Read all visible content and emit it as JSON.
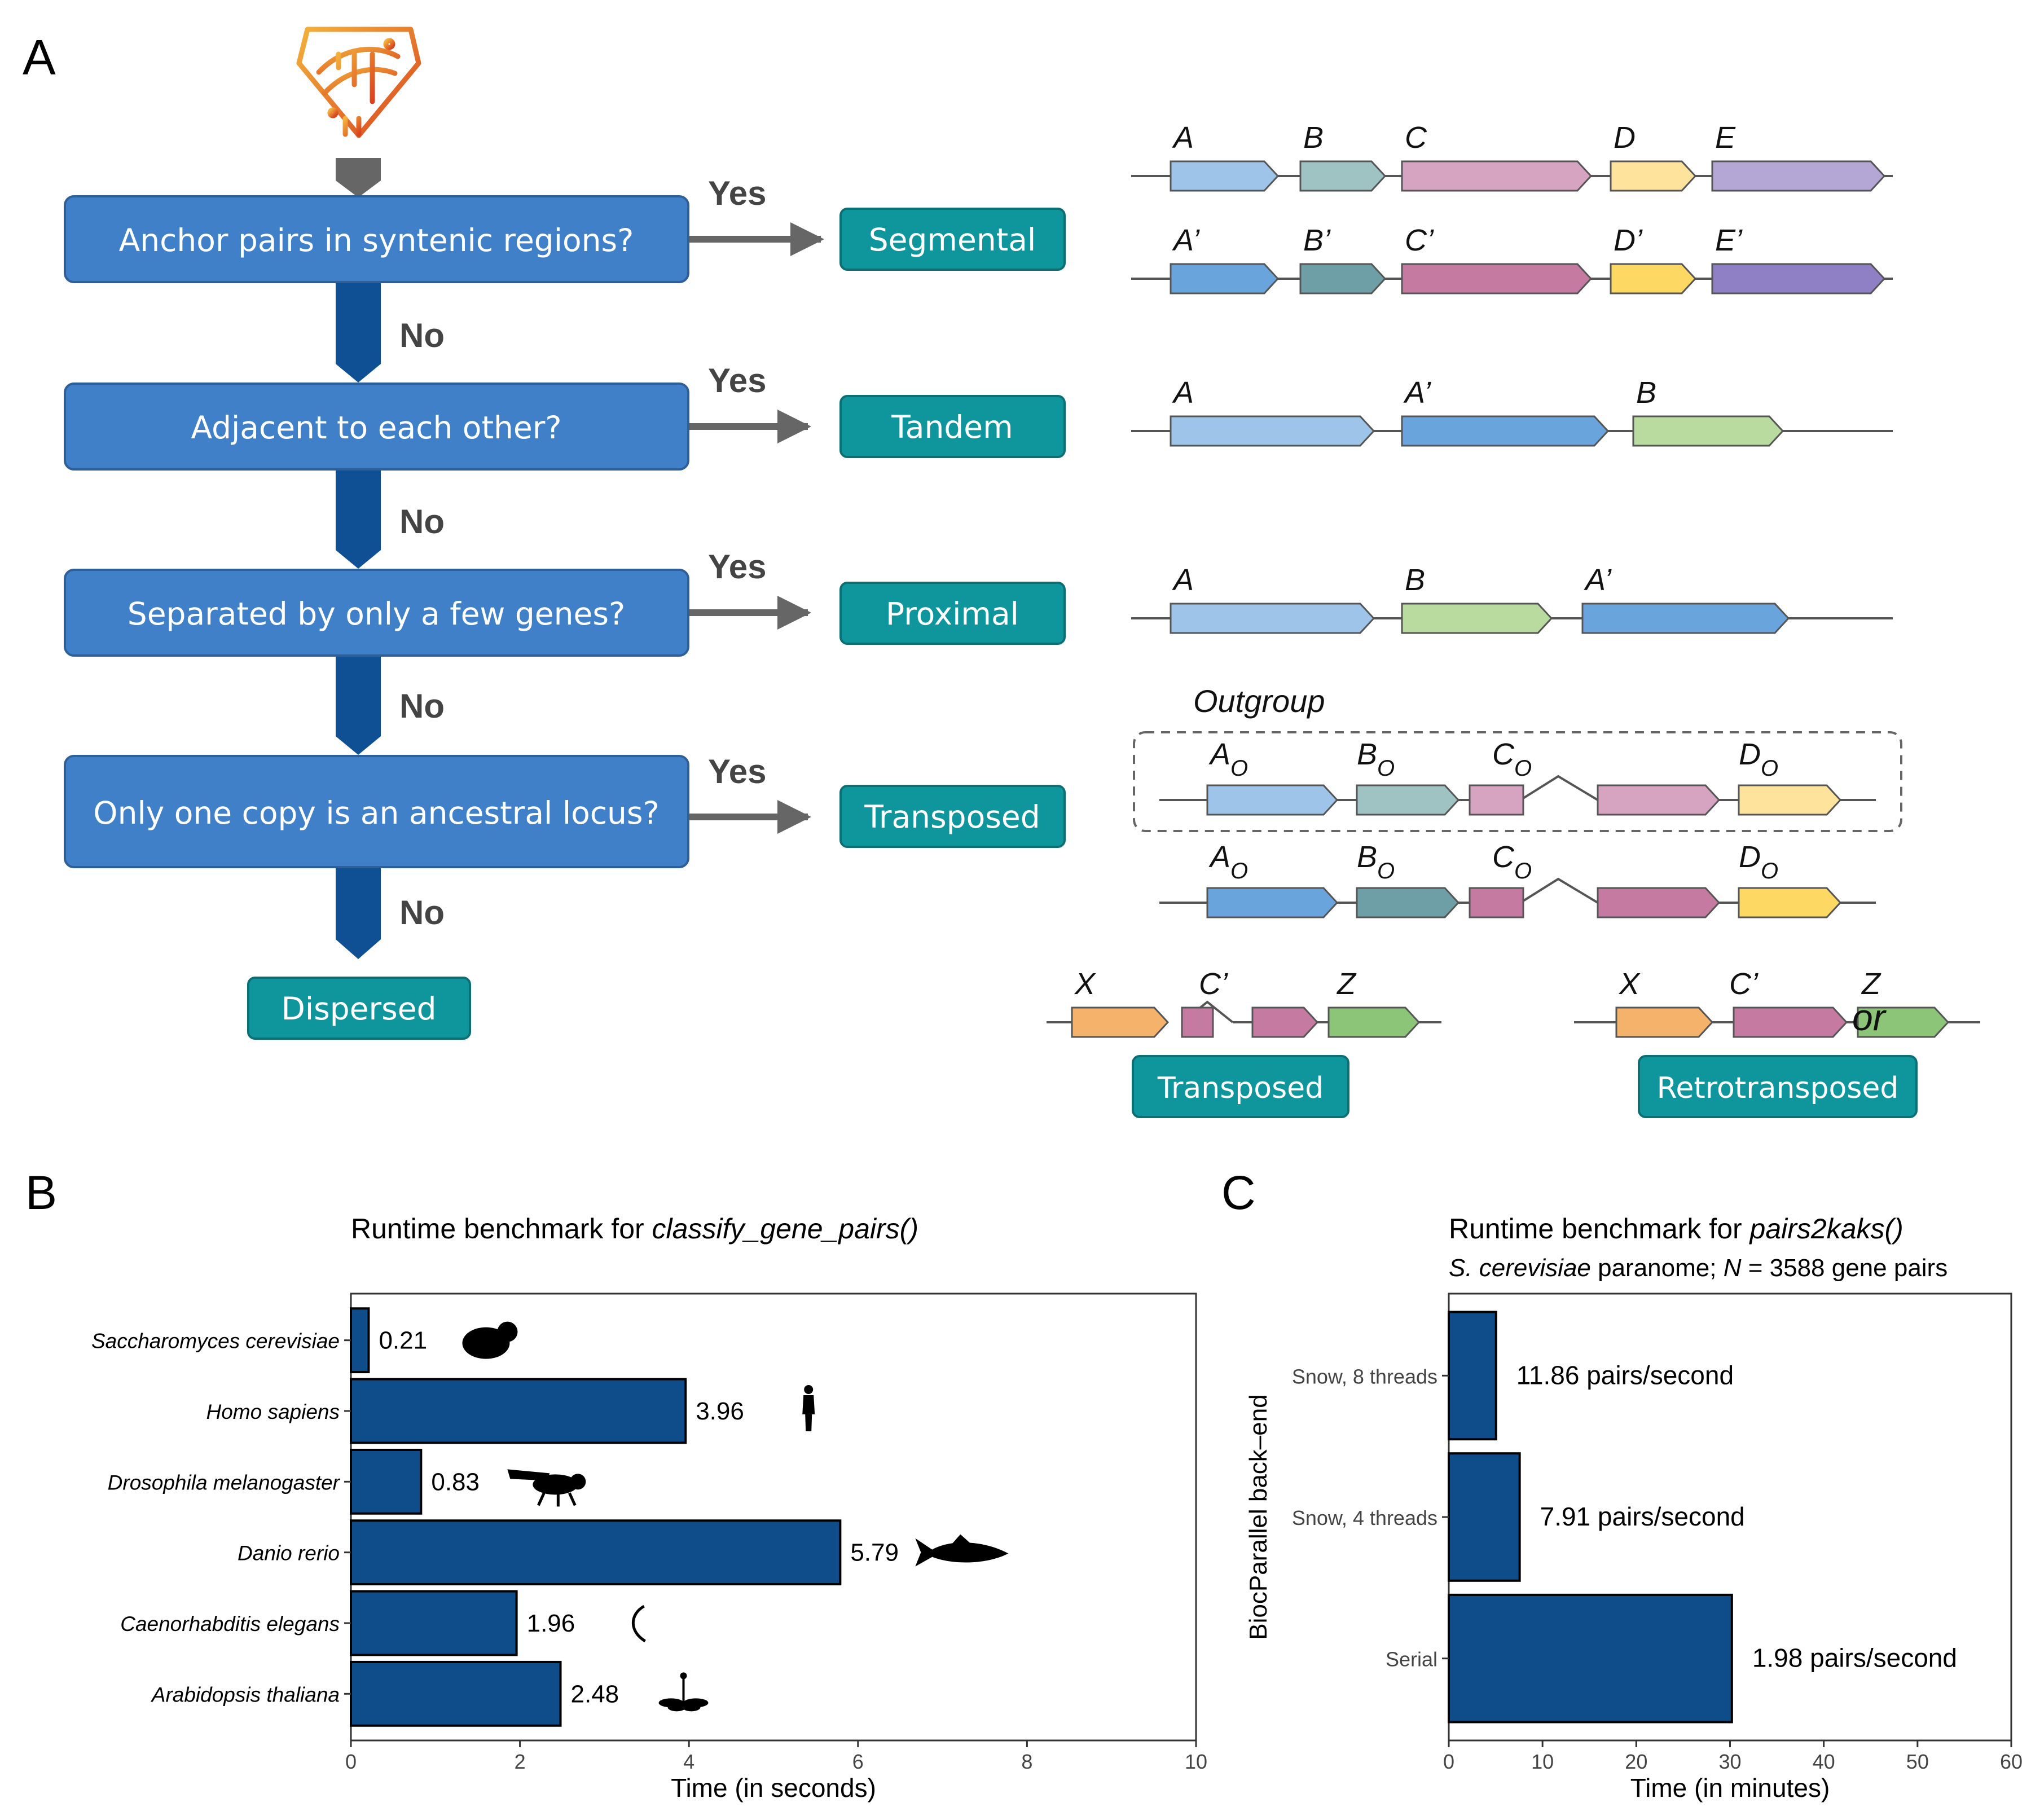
{
  "colors": {
    "question_box": "#3f80c8",
    "question_border": "#2f5f98",
    "category_box": "#0f969c",
    "category_border": "#0c6f74",
    "down_arrow": "#0f4f94",
    "side_arrow": "#666666",
    "bar_fill": "#0f4c8a",
    "gene_A": "#9fc4ea",
    "gene_A2": "#6aa4dc",
    "gene_B": "#9ec3c2",
    "gene_B2": "#6f9fa6",
    "gene_C": "#d6a3c1",
    "gene_C2": "#c57aa2",
    "gene_D": "#fde39b",
    "gene_D2": "#fdd862",
    "gene_E": "#b4a7d6",
    "gene_E2": "#8f7fc4",
    "gene_green": "#b9dba0",
    "gene_X": "#f5b26b",
    "gene_Z": "#8cc577"
  },
  "logo": "genomic-dna-shield-logo",
  "panelA": {
    "label": "A",
    "questions": [
      "Anchor pairs in syntenic regions?",
      "Adjacent to each other?",
      "Separated by only a few genes?",
      "Only one copy is an ancestral locus?"
    ],
    "yes": "Yes",
    "no": "No",
    "categories": [
      "Segmental",
      "Tandem",
      "Proximal",
      "Transposed",
      "Dispersed"
    ],
    "segmental": {
      "top": [
        "A",
        "B",
        "C",
        "D",
        "E"
      ],
      "bottom": [
        "A’",
        "B’",
        "C’",
        "D’",
        "E’"
      ]
    },
    "tandem": [
      "A",
      "A’",
      "B"
    ],
    "proximal": [
      "A",
      "B",
      "A’"
    ],
    "outgroup_title": "Outgroup",
    "outgroup_letters": [
      "A",
      "B",
      "C",
      "D"
    ],
    "outgroup_subscript": "O",
    "transposed_example": {
      "left": [
        "X",
        "C’",
        "Z"
      ],
      "right": [
        "X",
        "C’",
        "Z"
      ],
      "or": "or",
      "left_label": "Transposed",
      "right_label": "Retrotransposed"
    }
  },
  "panelB": {
    "label": "B",
    "title_prefix": "Runtime benchmark for ",
    "title_func": "classify_gene_pairs()"
  },
  "panelC": {
    "label": "C",
    "title_prefix": "Runtime benchmark for ",
    "title_func": "pairs2kaks()",
    "subtitle_species": "S. cerevisiae",
    "subtitle_mid": " paranome; ",
    "subtitle_n": "N",
    "subtitle_rest": " = 3588 gene pairs"
  },
  "chart_data": [
    {
      "type": "bar",
      "orientation": "horizontal",
      "title": "Runtime benchmark for classify_gene_pairs()",
      "xlabel": "Time (in seconds)",
      "ylabel": "",
      "xlim": [
        0,
        10
      ],
      "xticks": [
        0,
        2,
        4,
        6,
        8,
        10
      ],
      "categories": [
        "Saccharomyces cerevisiae",
        "Homo sapiens",
        "Drosophila melanogaster",
        "Danio rerio",
        "Caenorhabditis elegans",
        "Arabidopsis thaliana"
      ],
      "values": [
        0.21,
        3.96,
        0.83,
        5.79,
        1.96,
        2.48
      ],
      "data_labels": [
        "0.21",
        "3.96",
        "0.83",
        "5.79",
        "1.96",
        "2.48"
      ],
      "icons": [
        "yeast-icon",
        "human-icon",
        "fly-icon",
        "zebrafish-icon",
        "worm-icon",
        "arabidopsis-icon"
      ],
      "grid": false
    },
    {
      "type": "bar",
      "orientation": "horizontal",
      "title": "Runtime benchmark for pairs2kaks()",
      "subtitle": "S. cerevisiae paranome; N = 3588 gene pairs",
      "xlabel": "Time (in minutes)",
      "ylabel": "BiocParallel back–end",
      "xlim": [
        0,
        60
      ],
      "xticks": [
        0,
        10,
        20,
        30,
        40,
        50,
        60
      ],
      "categories": [
        "Snow, 8 threads",
        "Snow, 4 threads",
        "Serial"
      ],
      "values": [
        5.04,
        7.56,
        30.2
      ],
      "data_labels": [
        "11.86 pairs/second",
        "7.91 pairs/second",
        "1.98 pairs/second"
      ],
      "grid": false
    }
  ]
}
